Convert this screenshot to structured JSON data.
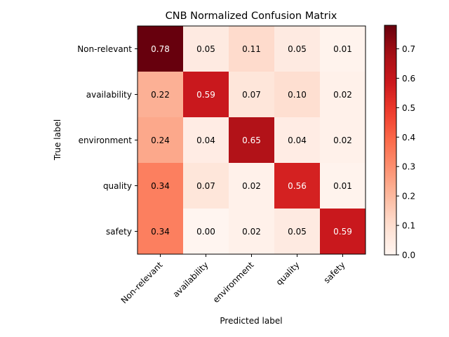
{
  "chart_data": {
    "type": "heatmap",
    "title": "CNB Normalized Confusion Matrix",
    "xlabel": "Predicted label",
    "ylabel": "True label",
    "x_categories": [
      "Non-relevant",
      "availability",
      "environment",
      "quality",
      "safety"
    ],
    "y_categories": [
      "Non-relevant",
      "availability",
      "environment",
      "quality",
      "safety"
    ],
    "values": [
      [
        0.78,
        0.05,
        0.11,
        0.05,
        0.01
      ],
      [
        0.22,
        0.59,
        0.07,
        0.1,
        0.02
      ],
      [
        0.24,
        0.04,
        0.65,
        0.04,
        0.02
      ],
      [
        0.34,
        0.07,
        0.02,
        0.56,
        0.01
      ],
      [
        0.34,
        0.0,
        0.02,
        0.05,
        0.59
      ]
    ],
    "colormap": "Reds",
    "value_range": [
      0.0,
      0.78
    ],
    "colorbar_ticks": [
      "0.0",
      "0.1",
      "0.2",
      "0.3",
      "0.4",
      "0.5",
      "0.6",
      "0.7"
    ],
    "text_color_dark": "#000000",
    "text_color_light": "#ffffff"
  }
}
